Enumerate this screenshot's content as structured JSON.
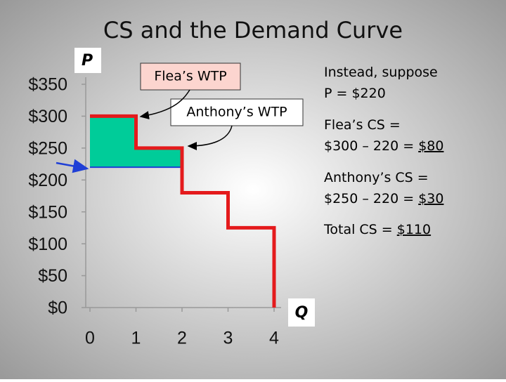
{
  "chart_data": {
    "type": "line",
    "title": "CS and the Demand Curve",
    "ylabel": "P",
    "xlabel": "Q",
    "x": [
      0,
      1,
      1,
      2,
      2,
      3,
      3,
      4,
      4
    ],
    "series": [
      {
        "color": "#e41a1c",
        "values": [
          300,
          300,
          250,
          250,
          180,
          180,
          125,
          125,
          0
        ]
      }
    ],
    "price": 220,
    "price_color": "#1f3fd6",
    "surplus": [
      {
        "x": [
          0,
          1
        ],
        "value": 300
      },
      {
        "x": [
          1,
          2
        ],
        "value": 250
      }
    ],
    "surplus_color": "#00cc99",
    "xlim": [
      0,
      4
    ],
    "xticks": [
      0,
      1,
      2,
      3,
      4
    ],
    "ylim": [
      0,
      350
    ],
    "yticks": [
      {
        "value": 0,
        "label": "$0"
      },
      {
        "value": 50,
        "label": "$50"
      },
      {
        "value": 100,
        "label": "$100"
      },
      {
        "value": 150,
        "label": "$150"
      },
      {
        "value": 200,
        "label": "$200"
      },
      {
        "value": 250,
        "label": "$250"
      },
      {
        "value": 300,
        "label": "$300"
      },
      {
        "value": 350,
        "label": "$350"
      }
    ],
    "annotations": [
      "Flea’s WTP",
      "Anthony’s WTP"
    ],
    "notes": [
      {
        "text": "Instead, suppose"
      },
      {
        "text": "P = $220"
      },
      {
        "text": "Flea’s CS ="
      },
      {
        "text": "$300 – 220 = ",
        "underlined": "$80"
      },
      {
        "text": "Anthony’s CS ="
      },
      {
        "text": "$250 – 220 = ",
        "underlined": "$30"
      },
      {
        "text": "Total CS = ",
        "underlined": "$110"
      }
    ]
  }
}
